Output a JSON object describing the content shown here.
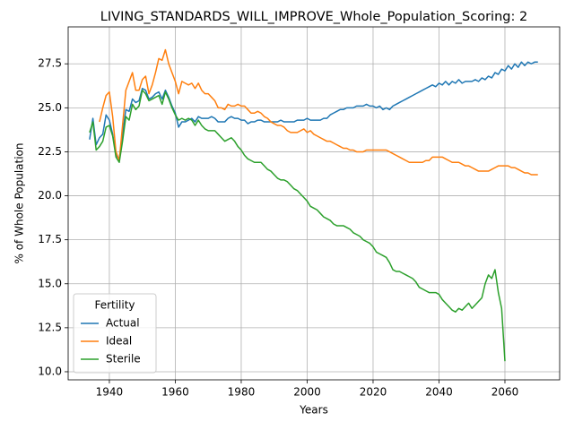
{
  "chart_data": {
    "type": "line",
    "title": "LIVING_STANDARDS_WILL_IMPROVE_Whole_Population_Scoring: 2",
    "x_label": "Years",
    "y_label": "% of Whole Population",
    "legend": "lower left",
    "legend_title": "Fertility",
    "grid": true,
    "xlim": [
      1927.5,
      2076.6
    ],
    "xticks": [
      1940,
      1960,
      1980,
      2000,
      2020,
      2040,
      2060
    ],
    "ylim": [
      9.54,
      29.6
    ],
    "yticks": [
      {
        "value": 10,
        "label": "10.0"
      },
      {
        "value": 12.5,
        "label": "12.5"
      },
      {
        "value": 15,
        "label": "15.0"
      },
      {
        "value": 17.5,
        "label": "17.5"
      },
      {
        "value": 20,
        "label": "20.0"
      },
      {
        "value": 22.5,
        "label": "22.5"
      },
      {
        "value": 25,
        "label": "25.0"
      },
      {
        "value": 27.5,
        "label": "27.5"
      }
    ],
    "x": [
      1934,
      1935,
      1936,
      1937,
      1938,
      1939,
      1940,
      1941,
      1942,
      1943,
      1944,
      1945,
      1946,
      1947,
      1948,
      1949,
      1950,
      1951,
      1952,
      1953,
      1954,
      1955,
      1956,
      1957,
      1958,
      1959,
      1960,
      1961,
      1962,
      1963,
      1964,
      1965,
      1966,
      1967,
      1968,
      1969,
      1970,
      1971,
      1972,
      1973,
      1974,
      1975,
      1976,
      1977,
      1978,
      1979,
      1980,
      1981,
      1982,
      1983,
      1984,
      1985,
      1986,
      1987,
      1988,
      1989,
      1990,
      1991,
      1992,
      1993,
      1994,
      1995,
      1996,
      1997,
      1998,
      1999,
      2000,
      2001,
      2002,
      2003,
      2004,
      2005,
      2006,
      2007,
      2008,
      2009,
      2010,
      2011,
      2012,
      2013,
      2014,
      2015,
      2016,
      2017,
      2018,
      2019,
      2020,
      2021,
      2022,
      2023,
      2024,
      2025,
      2026,
      2027,
      2028,
      2029,
      2030,
      2031,
      2032,
      2033,
      2034,
      2035,
      2036,
      2037,
      2038,
      2039,
      2040,
      2041,
      2042,
      2043,
      2044,
      2045,
      2046,
      2047,
      2048,
      2049,
      2050,
      2051,
      2052,
      2053,
      2054,
      2055,
      2056,
      2057,
      2058,
      2059,
      2060,
      2061,
      2062,
      2063,
      2064,
      2065,
      2066,
      2067,
      2068,
      2069,
      2070
    ],
    "series": [
      {
        "name": "Actual",
        "color": "#1f77b4",
        "values": [
          23.2,
          24.4,
          22.9,
          23.3,
          23.5,
          24.6,
          24.3,
          23.5,
          22.3,
          22.1,
          23.5,
          24.9,
          24.8,
          25.5,
          25.3,
          25.4,
          26.1,
          26.0,
          25.5,
          25.6,
          25.8,
          25.9,
          25.5,
          26.0,
          25.6,
          25.1,
          24.7,
          23.9,
          24.2,
          24.2,
          24.3,
          24.4,
          24.2,
          24.5,
          24.4,
          24.4,
          24.4,
          24.5,
          24.4,
          24.2,
          24.2,
          24.2,
          24.4,
          24.5,
          24.4,
          24.4,
          24.3,
          24.3,
          24.1,
          24.2,
          24.2,
          24.3,
          24.3,
          24.2,
          24.2,
          24.2,
          24.2,
          24.2,
          24.3,
          24.2,
          24.2,
          24.2,
          24.2,
          24.3,
          24.3,
          24.3,
          24.4,
          24.3,
          24.3,
          24.3,
          24.3,
          24.4,
          24.4,
          24.6,
          24.7,
          24.8,
          24.9,
          24.9,
          25.0,
          25.0,
          25.0,
          25.1,
          25.1,
          25.1,
          25.2,
          25.1,
          25.1,
          25.0,
          25.1,
          24.9,
          25.0,
          24.9,
          25.1,
          25.2,
          25.3,
          25.4,
          25.5,
          25.6,
          25.7,
          25.8,
          25.9,
          26.0,
          26.1,
          26.2,
          26.3,
          26.2,
          26.4,
          26.3,
          26.5,
          26.3,
          26.5,
          26.4,
          26.6,
          26.4,
          26.5,
          26.5,
          26.5,
          26.6,
          26.5,
          26.7,
          26.6,
          26.8,
          26.7,
          27.0,
          26.9,
          27.2,
          27.1,
          27.4,
          27.2,
          27.5,
          27.3,
          27.6,
          27.4,
          27.6,
          27.5,
          27.6,
          27.6
        ]
      },
      {
        "name": "Ideal",
        "color": "#ff7f0e",
        "values": [
          null,
          null,
          null,
          24.2,
          25.0,
          25.7,
          25.9,
          24.5,
          22.5,
          22.0,
          24.0,
          26.0,
          26.5,
          27.0,
          26.0,
          26.0,
          26.6,
          26.8,
          25.8,
          26.3,
          27.0,
          27.8,
          27.7,
          28.3,
          27.5,
          27.0,
          26.5,
          25.8,
          26.5,
          26.4,
          26.3,
          26.4,
          26.1,
          26.4,
          26.0,
          25.8,
          25.8,
          25.6,
          25.4,
          25.0,
          25.0,
          24.9,
          25.2,
          25.1,
          25.1,
          25.2,
          25.1,
          25.1,
          24.9,
          24.7,
          24.7,
          24.8,
          24.7,
          24.5,
          24.4,
          24.2,
          24.1,
          24.0,
          24.0,
          23.9,
          23.7,
          23.6,
          23.6,
          23.6,
          23.7,
          23.8,
          23.6,
          23.7,
          23.5,
          23.4,
          23.3,
          23.2,
          23.1,
          23.1,
          23.0,
          22.9,
          22.8,
          22.7,
          22.7,
          22.6,
          22.6,
          22.5,
          22.5,
          22.5,
          22.6,
          22.6,
          22.6,
          22.6,
          22.6,
          22.6,
          22.6,
          22.5,
          22.4,
          22.3,
          22.2,
          22.1,
          22.0,
          21.9,
          21.9,
          21.9,
          21.9,
          21.9,
          22.0,
          22.0,
          22.2,
          22.2,
          22.2,
          22.2,
          22.1,
          22.0,
          21.9,
          21.9,
          21.9,
          21.8,
          21.7,
          21.7,
          21.6,
          21.5,
          21.4,
          21.4,
          21.4,
          21.4,
          21.5,
          21.6,
          21.7,
          21.7,
          21.7,
          21.7,
          21.6,
          21.6,
          21.5,
          21.4,
          21.3,
          21.3,
          21.2,
          21.2,
          21.2
        ]
      },
      {
        "name": "Sterile",
        "color": "#2ca02c",
        "values": [
          23.6,
          24.2,
          22.6,
          22.8,
          23.1,
          23.9,
          24.0,
          23.4,
          22.2,
          21.9,
          23.1,
          24.5,
          24.3,
          25.2,
          24.9,
          25.1,
          26.0,
          25.8,
          25.4,
          25.5,
          25.6,
          25.7,
          25.2,
          25.9,
          25.5,
          25.0,
          24.6,
          24.3,
          24.4,
          24.3,
          24.4,
          24.3,
          24.0,
          24.3,
          24.0,
          23.8,
          23.7,
          23.7,
          23.7,
          23.5,
          23.3,
          23.1,
          23.2,
          23.3,
          23.1,
          22.8,
          22.6,
          22.3,
          22.1,
          22.0,
          21.9,
          21.9,
          21.9,
          21.7,
          21.5,
          21.4,
          21.2,
          21.0,
          20.9,
          20.9,
          20.8,
          20.6,
          20.4,
          20.3,
          20.1,
          19.9,
          19.7,
          19.4,
          19.3,
          19.2,
          19.0,
          18.8,
          18.7,
          18.6,
          18.4,
          18.3,
          18.3,
          18.3,
          18.2,
          18.1,
          17.9,
          17.8,
          17.7,
          17.5,
          17.4,
          17.3,
          17.1,
          16.8,
          16.7,
          16.6,
          16.5,
          16.2,
          15.8,
          15.7,
          15.7,
          15.6,
          15.5,
          15.4,
          15.3,
          15.1,
          14.8,
          14.7,
          14.6,
          14.5,
          14.5,
          14.5,
          14.4,
          14.1,
          13.9,
          13.7,
          13.5,
          13.4,
          13.6,
          13.5,
          13.7,
          13.9,
          13.6,
          13.8,
          14.0,
          14.2,
          15.0,
          15.5,
          15.3,
          15.8,
          14.5,
          13.6,
          10.6,
          null,
          null,
          null,
          null,
          null,
          null,
          null,
          null,
          null,
          null
        ]
      }
    ]
  }
}
